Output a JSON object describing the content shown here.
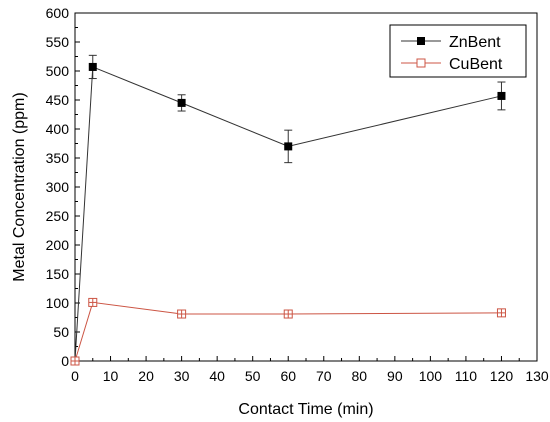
{
  "chart_data": {
    "type": "line",
    "title": "",
    "xlabel": "Contact Time (min)",
    "ylabel": "Metal Concentration (ppm)",
    "xlim": [
      0,
      130
    ],
    "ylim": [
      0,
      600
    ],
    "xticks": [
      0,
      10,
      20,
      30,
      40,
      50,
      60,
      70,
      80,
      90,
      100,
      110,
      120,
      130
    ],
    "yticks": [
      0,
      50,
      100,
      150,
      200,
      250,
      300,
      350,
      400,
      450,
      500,
      550,
      600
    ],
    "grid": false,
    "legend_position": "top-right",
    "series": [
      {
        "name": "ZnBent",
        "color": "#333333",
        "marker": "filled-square",
        "x": [
          0,
          5,
          30,
          60,
          120
        ],
        "y": [
          0,
          507,
          445,
          370,
          457
        ],
        "error": [
          0,
          20,
          14,
          28,
          24
        ]
      },
      {
        "name": "CuBent",
        "color": "#cc5544",
        "marker": "crossed-open-square",
        "x": [
          0,
          5,
          30,
          60,
          120
        ],
        "y": [
          0,
          101,
          81,
          81,
          83
        ],
        "error": [
          0,
          3,
          2,
          2,
          2
        ]
      }
    ]
  }
}
